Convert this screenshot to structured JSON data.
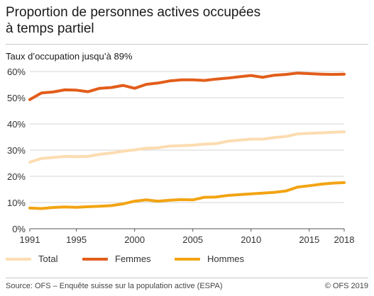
{
  "header": {
    "title": "Proportion de personnes actives occupées\nà temps partiel",
    "subtitle": "Taux d’occupation jusqu’à 89%"
  },
  "footer": {
    "source": "Source: OFS – Enquête suisse sur la population active (ESPA)",
    "copyright": "© OFS 2019"
  },
  "chart_data": {
    "type": "line",
    "x": [
      1991,
      1992,
      1993,
      1994,
      1995,
      1996,
      1997,
      1998,
      1999,
      2000,
      2001,
      2002,
      2003,
      2004,
      2005,
      2006,
      2007,
      2008,
      2009,
      2010,
      2011,
      2012,
      2013,
      2014,
      2015,
      2016,
      2017,
      2018
    ],
    "x_ticks": [
      "1991",
      "1995",
      "2000",
      "2005",
      "2010",
      "2015",
      "2018"
    ],
    "x_tick_values": [
      1991,
      1995,
      2000,
      2005,
      2010,
      2015,
      2018
    ],
    "y_ticks": [
      "0%",
      "10%",
      "20%",
      "30%",
      "40%",
      "50%",
      "60%"
    ],
    "y_tick_values": [
      0,
      10,
      20,
      30,
      40,
      50,
      60
    ],
    "ylim": [
      0,
      60
    ],
    "xlim": [
      1991,
      2018
    ],
    "grid": true,
    "legend_position": "bottom",
    "series": [
      {
        "name": "Total",
        "color": "#fcdcb0",
        "values": [
          25.4,
          26.8,
          27.2,
          27.6,
          27.5,
          27.6,
          28.4,
          28.9,
          29.6,
          30.1,
          30.7,
          30.9,
          31.5,
          31.7,
          31.9,
          32.3,
          32.5,
          33.4,
          33.8,
          34.2,
          34.2,
          34.8,
          35.2,
          36.2,
          36.4,
          36.6,
          36.8,
          37.0
        ]
      },
      {
        "name": "Femmes",
        "color": "#e25d1a",
        "values": [
          49.3,
          51.8,
          52.2,
          53.0,
          52.9,
          52.3,
          53.6,
          53.9,
          54.7,
          53.6,
          55.1,
          55.6,
          56.4,
          56.8,
          56.8,
          56.6,
          57.1,
          57.5,
          58.0,
          58.5,
          57.8,
          58.6,
          58.9,
          59.4,
          59.2,
          59.0,
          58.9,
          59.0
        ]
      },
      {
        "name": "Hommes",
        "color": "#f2a413",
        "values": [
          7.9,
          7.7,
          8.1,
          8.3,
          8.2,
          8.4,
          8.6,
          8.8,
          9.5,
          10.5,
          11.0,
          10.5,
          10.9,
          11.1,
          11.0,
          12.0,
          12.1,
          12.7,
          13.0,
          13.3,
          13.6,
          13.9,
          14.4,
          15.9,
          16.4,
          17.0,
          17.4,
          17.6
        ]
      }
    ]
  }
}
